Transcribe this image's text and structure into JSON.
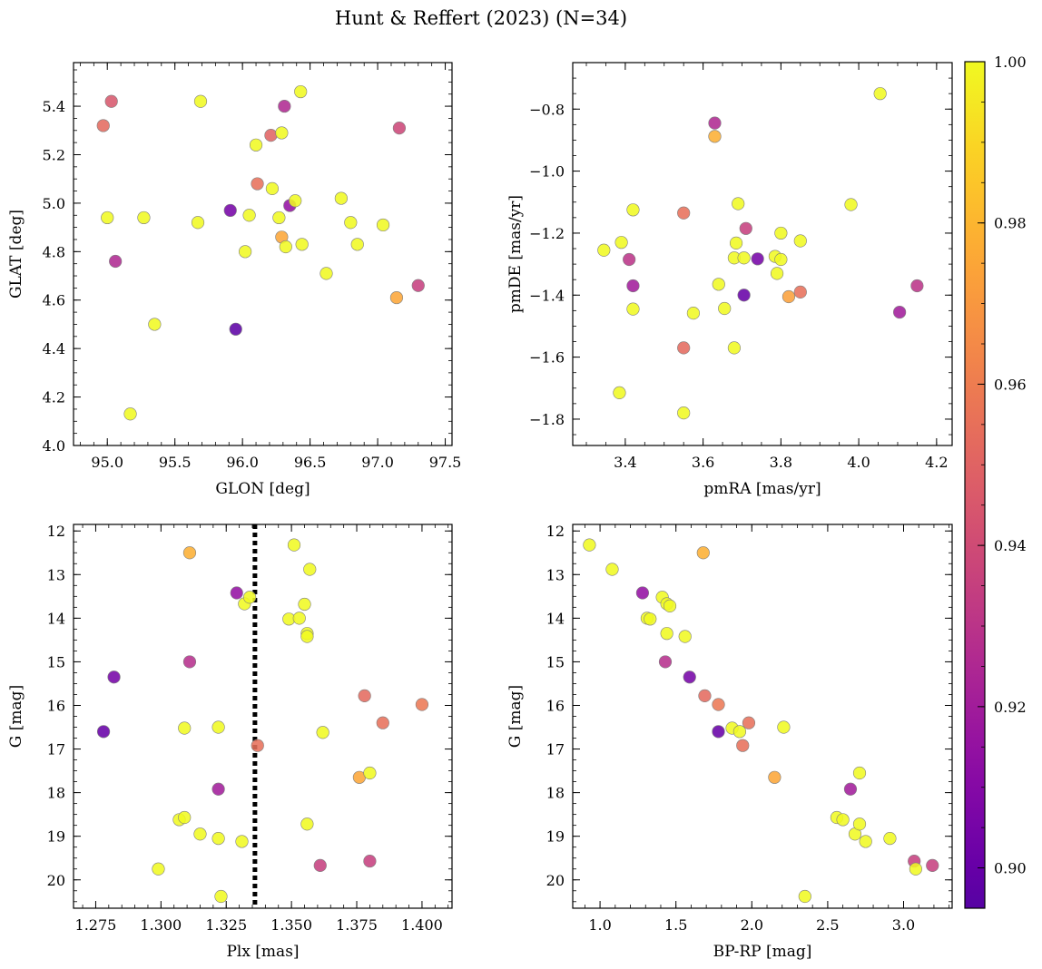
{
  "chart_data": {
    "title": "Hunt & Reffert (2023) (N=34)",
    "colorbar": {
      "range": [
        0.895,
        1.0
      ],
      "ticks": [
        0.9,
        0.92,
        0.94,
        0.96,
        0.98,
        1.0
      ],
      "tick_labels": [
        "0.90",
        "0.92",
        "0.94",
        "0.96",
        "0.98",
        "1.00"
      ],
      "colormap": "plasma"
    },
    "panels": [
      {
        "id": "glon-glat",
        "type": "scatter",
        "xlabel": "GLON [deg]",
        "ylabel": "GLAT [deg]",
        "xlim": [
          94.75,
          97.55
        ],
        "ylim": [
          4.0,
          5.58
        ],
        "y_inverted": false,
        "xticks": [
          95.0,
          95.5,
          96.0,
          96.5,
          97.0,
          97.5
        ],
        "xtick_labels": [
          "95.0",
          "95.5",
          "96.0",
          "96.5",
          "97.0",
          "97.5"
        ],
        "yticks": [
          4.0,
          4.2,
          4.4,
          4.6,
          4.8,
          5.0,
          5.2,
          5.4
        ],
        "ytick_labels": [
          "4.0",
          "4.2",
          "4.4",
          "4.6",
          "4.8",
          "5.0",
          "5.2",
          "5.4"
        ],
        "xminor": 0.1,
        "yminor": 0.05,
        "points": [
          [
            95.03,
            5.42,
            0.945
          ],
          [
            94.97,
            5.32,
            0.953
          ],
          [
            95.0,
            4.94,
            1.0
          ],
          [
            95.06,
            4.76,
            0.925
          ],
          [
            95.27,
            4.94,
            1.0
          ],
          [
            95.35,
            4.5,
            1.0
          ],
          [
            95.17,
            4.13,
            1.0
          ],
          [
            95.69,
            5.42,
            1.0
          ],
          [
            95.67,
            4.92,
            1.0
          ],
          [
            95.91,
            4.97,
            0.905
          ],
          [
            95.95,
            4.48,
            0.897
          ],
          [
            96.02,
            4.8,
            1.0
          ],
          [
            96.05,
            4.95,
            1.0
          ],
          [
            96.1,
            5.24,
            1.0
          ],
          [
            96.11,
            5.08,
            0.955
          ],
          [
            96.21,
            5.28,
            0.95
          ],
          [
            96.22,
            5.06,
            1.0
          ],
          [
            96.27,
            4.94,
            1.0
          ],
          [
            96.29,
            5.29,
            1.0
          ],
          [
            96.29,
            4.86,
            0.975
          ],
          [
            96.31,
            5.4,
            0.925
          ],
          [
            96.32,
            4.82,
            1.0
          ],
          [
            96.35,
            4.99,
            0.915
          ],
          [
            96.39,
            5.01,
            1.0
          ],
          [
            96.43,
            5.46,
            1.0
          ],
          [
            96.44,
            4.83,
            1.0
          ],
          [
            96.62,
            4.71,
            1.0
          ],
          [
            96.73,
            5.02,
            1.0
          ],
          [
            96.8,
            4.92,
            1.0
          ],
          [
            96.85,
            4.83,
            1.0
          ],
          [
            97.04,
            4.91,
            1.0
          ],
          [
            97.14,
            4.61,
            0.975
          ],
          [
            97.16,
            5.31,
            0.938
          ],
          [
            97.3,
            4.66,
            0.935
          ]
        ]
      },
      {
        "id": "pmra-pmde",
        "type": "scatter",
        "xlabel": "pmRA [mas/yr]",
        "ylabel": "pmDE [mas/yr]",
        "xlim": [
          3.265,
          4.24
        ],
        "ylim": [
          -1.885,
          -0.65
        ],
        "y_inverted": false,
        "xticks": [
          3.4,
          3.6,
          3.8,
          4.0,
          4.2
        ],
        "xtick_labels": [
          "3.4",
          "3.6",
          "3.8",
          "4.0",
          "4.2"
        ],
        "yticks": [
          -1.8,
          -1.6,
          -1.4,
          -1.2,
          -1.0,
          -0.8
        ],
        "ytick_labels": [
          "−1.8",
          "−1.6",
          "−1.4",
          "−1.2",
          "−1.0",
          "−0.8"
        ],
        "xminor": 0.05,
        "yminor": 0.05,
        "points": [
          [
            3.345,
            -1.255,
            1.0
          ],
          [
            3.39,
            -1.23,
            1.0
          ],
          [
            3.385,
            -1.715,
            1.0
          ],
          [
            3.41,
            -1.285,
            0.93
          ],
          [
            3.42,
            -1.125,
            1.0
          ],
          [
            3.42,
            -1.37,
            0.92
          ],
          [
            3.42,
            -1.445,
            1.0
          ],
          [
            3.55,
            -1.135,
            0.955
          ],
          [
            3.55,
            -1.57,
            0.953
          ],
          [
            3.55,
            -1.78,
            1.0
          ],
          [
            3.575,
            -1.458,
            1.0
          ],
          [
            3.63,
            -0.845,
            0.925
          ],
          [
            3.63,
            -0.888,
            0.978
          ],
          [
            3.64,
            -1.365,
            1.0
          ],
          [
            3.655,
            -1.443,
            1.0
          ],
          [
            3.68,
            -1.28,
            1.0
          ],
          [
            3.685,
            -1.232,
            1.0
          ],
          [
            3.69,
            -1.105,
            1.0
          ],
          [
            3.68,
            -1.57,
            1.0
          ],
          [
            3.705,
            -1.28,
            1.0
          ],
          [
            3.705,
            -1.4,
            0.9
          ],
          [
            3.71,
            -1.185,
            0.935
          ],
          [
            3.74,
            -1.283,
            0.905
          ],
          [
            3.785,
            -1.275,
            1.0
          ],
          [
            3.79,
            -1.33,
            1.0
          ],
          [
            3.8,
            -1.2,
            1.0
          ],
          [
            3.8,
            -1.285,
            1.0
          ],
          [
            3.82,
            -1.405,
            0.973
          ],
          [
            3.85,
            -1.225,
            1.0
          ],
          [
            3.85,
            -1.39,
            0.955
          ],
          [
            3.98,
            -1.108,
            1.0
          ],
          [
            4.055,
            -0.75,
            1.0
          ],
          [
            4.105,
            -1.455,
            0.92
          ],
          [
            4.15,
            -1.37,
            0.93
          ]
        ]
      },
      {
        "id": "plx-g",
        "type": "scatter",
        "xlabel": "Plx [mas]",
        "ylabel": "G [mag]",
        "xlim": [
          1.2665,
          1.4115
        ],
        "ylim": [
          11.85,
          20.65
        ],
        "y_inverted": true,
        "xticks": [
          1.275,
          1.3,
          1.325,
          1.35,
          1.375,
          1.4
        ],
        "xtick_labels": [
          "1.275",
          "1.300",
          "1.325",
          "1.350",
          "1.375",
          "1.400"
        ],
        "yticks": [
          12,
          13,
          14,
          15,
          16,
          17,
          18,
          19,
          20
        ],
        "ytick_labels": [
          "12",
          "13",
          "14",
          "15",
          "16",
          "17",
          "18",
          "19",
          "20"
        ],
        "xminor": 0.005,
        "yminor": 0.25,
        "reference_line": {
          "axis": "x",
          "value": 1.336,
          "style": "dotted",
          "color": "#000000"
        },
        "points": [
          [
            1.278,
            16.6,
            0.9
          ],
          [
            1.282,
            15.35,
            0.905
          ],
          [
            1.299,
            19.75,
            1.0
          ],
          [
            1.307,
            18.62,
            1.0
          ],
          [
            1.309,
            18.57,
            1.0
          ],
          [
            1.309,
            16.52,
            1.0
          ],
          [
            1.311,
            12.5,
            0.978
          ],
          [
            1.311,
            15.0,
            0.928
          ],
          [
            1.315,
            18.95,
            1.0
          ],
          [
            1.322,
            16.5,
            1.0
          ],
          [
            1.322,
            17.92,
            0.92
          ],
          [
            1.322,
            19.05,
            1.0
          ],
          [
            1.323,
            20.38,
            1.0
          ],
          [
            1.329,
            13.42,
            0.915
          ],
          [
            1.331,
            19.12,
            1.0
          ],
          [
            1.332,
            13.67,
            1.0
          ],
          [
            1.334,
            13.52,
            1.0
          ],
          [
            1.337,
            16.92,
            0.955
          ],
          [
            1.349,
            14.02,
            1.0
          ],
          [
            1.351,
            12.32,
            1.0
          ],
          [
            1.353,
            14.0,
            1.0
          ],
          [
            1.355,
            13.68,
            1.0
          ],
          [
            1.356,
            14.35,
            1.0
          ],
          [
            1.356,
            14.42,
            1.0
          ],
          [
            1.356,
            18.72,
            1.0
          ],
          [
            1.357,
            12.88,
            1.0
          ],
          [
            1.361,
            19.67,
            0.935
          ],
          [
            1.362,
            16.62,
            1.0
          ],
          [
            1.376,
            17.65,
            0.975
          ],
          [
            1.378,
            15.78,
            0.953
          ],
          [
            1.38,
            17.55,
            1.0
          ],
          [
            1.38,
            19.57,
            0.935
          ],
          [
            1.385,
            16.4,
            0.955
          ],
          [
            1.4,
            15.98,
            0.958
          ]
        ]
      },
      {
        "id": "bprp-g",
        "type": "scatter",
        "xlabel": "BP-RP [mag]",
        "ylabel": "G [mag]",
        "xlim": [
          0.82,
          3.32
        ],
        "ylim": [
          11.85,
          20.65
        ],
        "y_inverted": true,
        "xticks": [
          1.0,
          1.5,
          2.0,
          2.5,
          3.0
        ],
        "xtick_labels": [
          "1.0",
          "1.5",
          "2.0",
          "2.5",
          "3.0"
        ],
        "yticks": [
          12,
          13,
          14,
          15,
          16,
          17,
          18,
          19,
          20
        ],
        "ytick_labels": [
          "12",
          "13",
          "14",
          "15",
          "16",
          "17",
          "18",
          "19",
          "20"
        ],
        "xminor": 0.1,
        "yminor": 0.25,
        "points": [
          [
            0.93,
            12.32,
            1.0
          ],
          [
            1.08,
            12.88,
            1.0
          ],
          [
            1.28,
            13.42,
            0.915
          ],
          [
            1.31,
            14.0,
            1.0
          ],
          [
            1.33,
            14.02,
            1.0
          ],
          [
            1.41,
            13.52,
            1.0
          ],
          [
            1.44,
            13.67,
            1.0
          ],
          [
            1.46,
            13.72,
            1.0
          ],
          [
            1.44,
            14.35,
            1.0
          ],
          [
            1.43,
            15.0,
            0.928
          ],
          [
            1.56,
            14.42,
            1.0
          ],
          [
            1.59,
            15.35,
            0.905
          ],
          [
            1.68,
            12.5,
            0.978
          ],
          [
            1.69,
            15.78,
            0.953
          ],
          [
            1.78,
            15.98,
            0.958
          ],
          [
            1.78,
            16.6,
            0.9
          ],
          [
            1.87,
            16.52,
            1.0
          ],
          [
            1.92,
            16.6,
            1.0
          ],
          [
            1.94,
            16.92,
            0.955
          ],
          [
            1.98,
            16.4,
            0.955
          ],
          [
            2.15,
            17.65,
            0.975
          ],
          [
            2.21,
            16.5,
            1.0
          ],
          [
            2.35,
            20.38,
            1.0
          ],
          [
            2.56,
            18.57,
            1.0
          ],
          [
            2.6,
            18.62,
            1.0
          ],
          [
            2.65,
            17.92,
            0.92
          ],
          [
            2.68,
            18.95,
            1.0
          ],
          [
            2.71,
            17.55,
            1.0
          ],
          [
            2.71,
            18.72,
            1.0
          ],
          [
            2.75,
            19.12,
            1.0
          ],
          [
            2.91,
            19.05,
            1.0
          ],
          [
            3.07,
            19.57,
            0.935
          ],
          [
            3.08,
            19.75,
            1.0
          ],
          [
            3.19,
            19.67,
            0.935
          ]
        ]
      }
    ]
  }
}
